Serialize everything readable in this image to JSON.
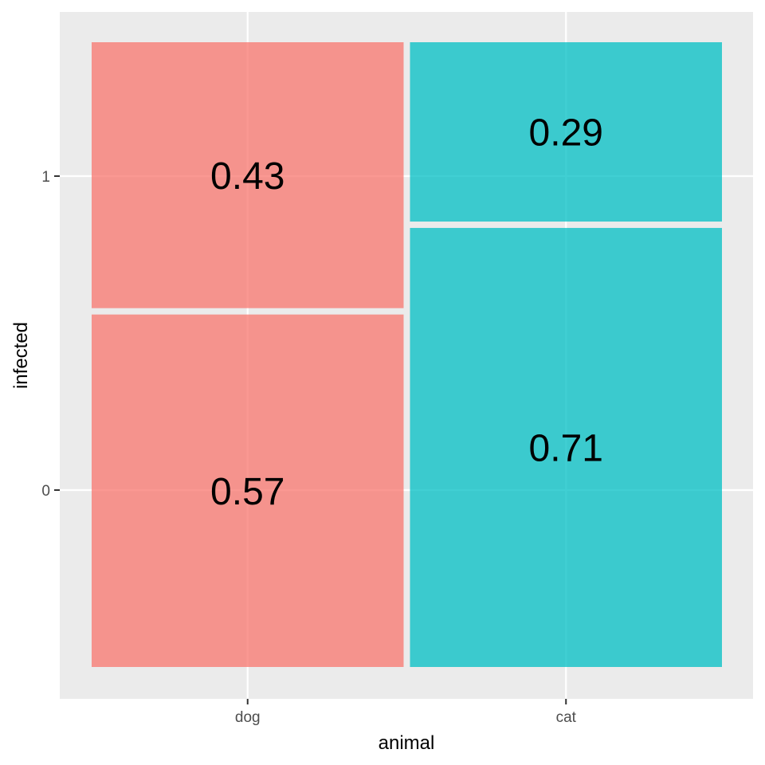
{
  "chart_data": {
    "type": "mosaic",
    "title": "",
    "xlabel": "animal",
    "ylabel": "infected",
    "x_categories": [
      "dog",
      "cat"
    ],
    "y_categories": [
      "0",
      "1"
    ],
    "series": [
      {
        "category": "dog",
        "color": "#F8766D",
        "proportions": [
          0.57,
          0.43
        ],
        "labels": [
          "0.57",
          "0.43"
        ]
      },
      {
        "category": "cat",
        "color": "#00BFC4",
        "proportions": [
          0.71,
          0.29
        ],
        "labels": [
          "0.71",
          "0.29"
        ]
      }
    ],
    "ylim": [
      0,
      1
    ],
    "grid": true,
    "legend": "none"
  }
}
